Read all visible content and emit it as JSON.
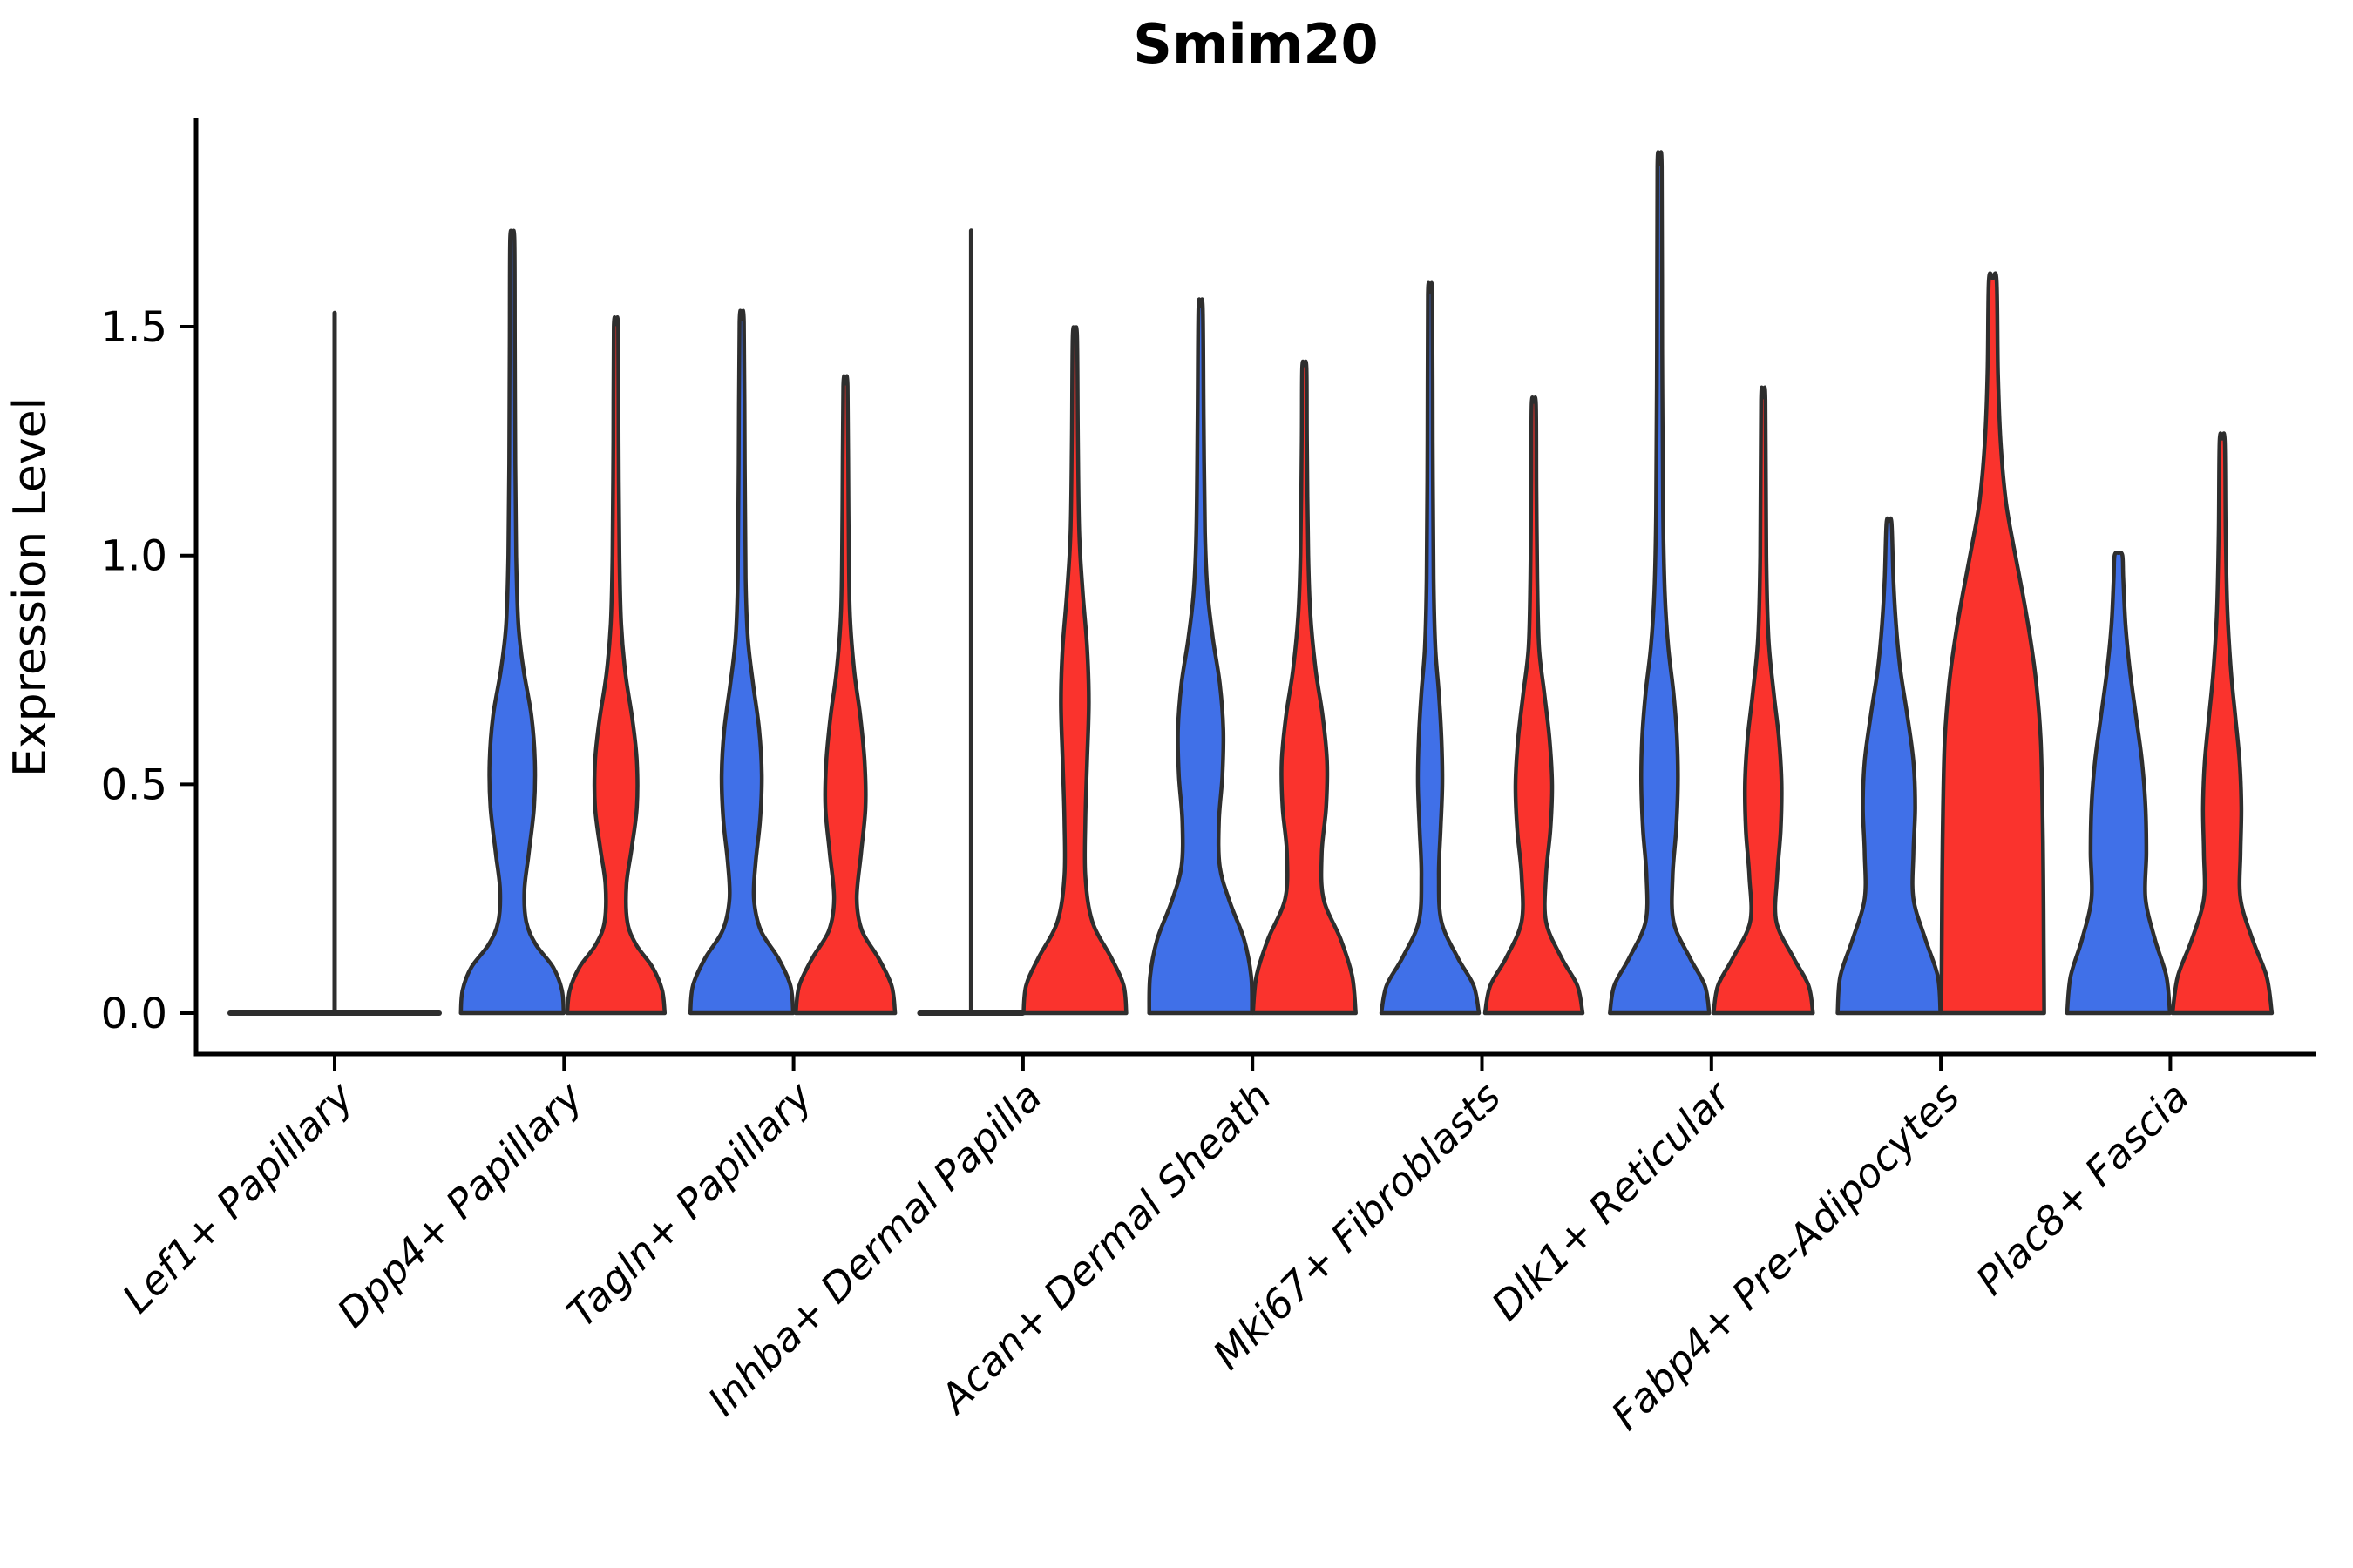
{
  "colors": {
    "blue": "#4070E8",
    "red": "#FA332D",
    "outline": "#2E2E2E"
  },
  "chart_data": {
    "type": "violin",
    "title": "Smim20",
    "ylabel": "Expression Level",
    "xlabel": "",
    "ylim": [
      -0.09,
      1.95
    ],
    "yticks": [
      0,
      0.5,
      1.0,
      1.5
    ],
    "ytick_labels": [
      "0.0",
      "0.5",
      "1.0",
      "1.5"
    ],
    "grid": false,
    "legend": "none",
    "series_colors": {
      "blue": "#4070E8",
      "red": "#FA332D"
    },
    "categories": [
      "Lef1+ Papillary",
      "Dpp4+ Papillary",
      "Tagln+ Papillary",
      "Inhba+ Dermal Papilla",
      "Acan+ Dermal Sheath",
      "Mki67+ Fibroblasts",
      "Dlk1+ Reticular",
      "Fabp4+ Pre-Adipocytes",
      "Plac8+ Fascia"
    ],
    "violins": [
      {
        "category": "Lef1+ Papillary",
        "items": [
          {
            "side": "center",
            "color": "none",
            "flat": true,
            "halfspan": 120,
            "max": 1.53
          }
        ]
      },
      {
        "category": "Dpp4+ Papillary",
        "items": [
          {
            "side": "left",
            "color": "blue",
            "max": 1.69,
            "profile": [
              [
                0,
                59
              ],
              [
                0.05,
                57
              ],
              [
                0.1,
                47
              ],
              [
                0.15,
                27
              ],
              [
                0.2,
                16
              ],
              [
                0.27,
                14
              ],
              [
                0.35,
                19
              ],
              [
                0.45,
                25
              ],
              [
                0.55,
                26
              ],
              [
                0.65,
                22
              ],
              [
                0.75,
                13
              ],
              [
                0.85,
                7
              ],
              [
                1.0,
                4.5
              ],
              [
                1.2,
                3.5
              ],
              [
                1.45,
                3
              ],
              [
                1.69,
                2.5
              ]
            ]
          },
          {
            "side": "right",
            "color": "red",
            "max": 1.5,
            "profile": [
              [
                0,
                56
              ],
              [
                0.05,
                53
              ],
              [
                0.1,
                42
              ],
              [
                0.15,
                23
              ],
              [
                0.2,
                13
              ],
              [
                0.28,
                12
              ],
              [
                0.36,
                18
              ],
              [
                0.45,
                24
              ],
              [
                0.55,
                24
              ],
              [
                0.64,
                19
              ],
              [
                0.74,
                11
              ],
              [
                0.85,
                6
              ],
              [
                1.0,
                4
              ],
              [
                1.25,
                3
              ],
              [
                1.5,
                2.5
              ]
            ]
          }
        ]
      },
      {
        "category": "Tagln+ Papillary",
        "items": [
          {
            "side": "left",
            "color": "blue",
            "max": 1.51,
            "profile": [
              [
                0,
                59
              ],
              [
                0.06,
                56
              ],
              [
                0.12,
                42
              ],
              [
                0.18,
                22
              ],
              [
                0.25,
                14
              ],
              [
                0.33,
                16
              ],
              [
                0.42,
                21
              ],
              [
                0.52,
                23
              ],
              [
                0.62,
                20
              ],
              [
                0.72,
                13
              ],
              [
                0.82,
                7
              ],
              [
                0.95,
                4.5
              ],
              [
                1.2,
                3.5
              ],
              [
                1.51,
                2.5
              ]
            ]
          },
          {
            "side": "right",
            "color": "red",
            "max": 1.37,
            "profile": [
              [
                0,
                57
              ],
              [
                0.06,
                53
              ],
              [
                0.12,
                38
              ],
              [
                0.18,
                19
              ],
              [
                0.25,
                13
              ],
              [
                0.35,
                18
              ],
              [
                0.45,
                23
              ],
              [
                0.55,
                22
              ],
              [
                0.65,
                17
              ],
              [
                0.75,
                10
              ],
              [
                0.88,
                5
              ],
              [
                1.1,
                3.5
              ],
              [
                1.37,
                2.5
              ]
            ]
          }
        ]
      },
      {
        "category": "Inhba+ Dermal Papilla",
        "items": [
          {
            "side": "left",
            "color": "blue",
            "flat": true,
            "halfspan": 59,
            "max": 1.71
          },
          {
            "side": "right",
            "color": "red",
            "max": 1.48,
            "profile": [
              [
                0,
                59
              ],
              [
                0.06,
                56
              ],
              [
                0.12,
                42
              ],
              [
                0.2,
                20
              ],
              [
                0.3,
                12
              ],
              [
                0.42,
                12
              ],
              [
                0.55,
                14
              ],
              [
                0.68,
                16
              ],
              [
                0.8,
                14
              ],
              [
                0.92,
                9
              ],
              [
                1.05,
                5
              ],
              [
                1.25,
                3.5
              ],
              [
                1.48,
                2.5
              ]
            ]
          }
        ]
      },
      {
        "category": "Acan+ Dermal Sheath",
        "items": [
          {
            "side": "left",
            "color": "blue",
            "max": 1.54,
            "profile": [
              [
                0,
                59
              ],
              [
                0.08,
                58
              ],
              [
                0.16,
                50
              ],
              [
                0.24,
                34
              ],
              [
                0.32,
                22
              ],
              [
                0.42,
                21
              ],
              [
                0.52,
                25
              ],
              [
                0.62,
                26
              ],
              [
                0.72,
                22
              ],
              [
                0.82,
                14
              ],
              [
                0.92,
                8
              ],
              [
                1.05,
                5
              ],
              [
                1.3,
                3.5
              ],
              [
                1.54,
                2.5
              ]
            ]
          },
          {
            "side": "right",
            "color": "red",
            "max": 1.41,
            "profile": [
              [
                0,
                59
              ],
              [
                0.08,
                55
              ],
              [
                0.16,
                42
              ],
              [
                0.25,
                22
              ],
              [
                0.35,
                20
              ],
              [
                0.45,
                25
              ],
              [
                0.55,
                26
              ],
              [
                0.65,
                21
              ],
              [
                0.75,
                13
              ],
              [
                0.87,
                7
              ],
              [
                1.0,
                4.5
              ],
              [
                1.25,
                3
              ],
              [
                1.41,
                2.5
              ]
            ]
          }
        ]
      },
      {
        "category": "Mki67+ Fibroblasts",
        "items": [
          {
            "side": "left",
            "color": "blue",
            "max": 1.57,
            "profile": [
              [
                0,
                56
              ],
              [
                0.06,
                50
              ],
              [
                0.12,
                32
              ],
              [
                0.2,
                13
              ],
              [
                0.3,
                10
              ],
              [
                0.4,
                12
              ],
              [
                0.5,
                14
              ],
              [
                0.6,
                13
              ],
              [
                0.7,
                10
              ],
              [
                0.8,
                6
              ],
              [
                0.95,
                4
              ],
              [
                1.25,
                3
              ],
              [
                1.57,
                2.5
              ]
            ]
          },
          {
            "side": "right",
            "color": "red",
            "max": 1.33,
            "profile": [
              [
                0,
                56
              ],
              [
                0.06,
                50
              ],
              [
                0.12,
                32
              ],
              [
                0.2,
                14
              ],
              [
                0.3,
                14
              ],
              [
                0.4,
                19
              ],
              [
                0.5,
                21
              ],
              [
                0.6,
                18
              ],
              [
                0.7,
                12
              ],
              [
                0.8,
                6
              ],
              [
                0.95,
                4
              ],
              [
                1.15,
                3
              ],
              [
                1.33,
                2.5
              ]
            ]
          }
        ]
      },
      {
        "category": "Dlk1+ Reticular",
        "items": [
          {
            "side": "left",
            "color": "blue",
            "max": 1.85,
            "profile": [
              [
                0,
                57
              ],
              [
                0.06,
                52
              ],
              [
                0.12,
                35
              ],
              [
                0.2,
                16
              ],
              [
                0.3,
                15
              ],
              [
                0.4,
                19
              ],
              [
                0.5,
                21
              ],
              [
                0.6,
                20
              ],
              [
                0.7,
                16
              ],
              [
                0.8,
                10
              ],
              [
                0.92,
                6
              ],
              [
                1.1,
                4
              ],
              [
                1.45,
                3
              ],
              [
                1.85,
                2.5
              ]
            ]
          },
          {
            "side": "right",
            "color": "red",
            "max": 1.34,
            "profile": [
              [
                0,
                57
              ],
              [
                0.06,
                52
              ],
              [
                0.12,
                35
              ],
              [
                0.2,
                15
              ],
              [
                0.3,
                16
              ],
              [
                0.4,
                20
              ],
              [
                0.5,
                21
              ],
              [
                0.6,
                18
              ],
              [
                0.7,
                12
              ],
              [
                0.82,
                6
              ],
              [
                1.0,
                3.5
              ],
              [
                1.34,
                2.5
              ]
            ]
          }
        ]
      },
      {
        "category": "Fabp4+ Pre-Adipocytes",
        "items": [
          {
            "side": "left",
            "color": "blue",
            "max": 1.07,
            "profile": [
              [
                0,
                59
              ],
              [
                0.08,
                56
              ],
              [
                0.16,
                42
              ],
              [
                0.25,
                28
              ],
              [
                0.35,
                28
              ],
              [
                0.45,
                30
              ],
              [
                0.55,
                28
              ],
              [
                0.65,
                21
              ],
              [
                0.75,
                13
              ],
              [
                0.85,
                8
              ],
              [
                0.95,
                5
              ],
              [
                1.07,
                3
              ]
            ]
          },
          {
            "side": "right",
            "color": "red",
            "max": 1.6,
            "profile": [
              [
                0,
                59
              ],
              [
                0.15,
                58.5
              ],
              [
                0.3,
                58
              ],
              [
                0.45,
                57
              ],
              [
                0.6,
                55
              ],
              [
                0.72,
                50
              ],
              [
                0.82,
                43
              ],
              [
                0.92,
                34
              ],
              [
                1.02,
                24
              ],
              [
                1.12,
                15
              ],
              [
                1.25,
                9
              ],
              [
                1.4,
                6
              ],
              [
                1.6,
                4.5
              ]
            ]
          }
        ]
      },
      {
        "category": "Plac8+ Fascia",
        "items": [
          {
            "side": "left",
            "color": "blue",
            "max": 1.0,
            "profile": [
              [
                0,
                59
              ],
              [
                0.08,
                55
              ],
              [
                0.16,
                42
              ],
              [
                0.25,
                31
              ],
              [
                0.35,
                32
              ],
              [
                0.45,
                31
              ],
              [
                0.55,
                27
              ],
              [
                0.65,
                20
              ],
              [
                0.75,
                13
              ],
              [
                0.85,
                8
              ],
              [
                0.95,
                5.5
              ],
              [
                1.0,
                4.5
              ]
            ]
          },
          {
            "side": "right",
            "color": "red",
            "max": 1.25,
            "profile": [
              [
                0,
                57
              ],
              [
                0.08,
                51
              ],
              [
                0.16,
                35
              ],
              [
                0.25,
                21
              ],
              [
                0.35,
                21
              ],
              [
                0.45,
                22
              ],
              [
                0.55,
                20
              ],
              [
                0.65,
                15
              ],
              [
                0.75,
                10
              ],
              [
                0.88,
                6
              ],
              [
                1.05,
                4
              ],
              [
                1.25,
                3
              ]
            ]
          }
        ]
      }
    ]
  }
}
